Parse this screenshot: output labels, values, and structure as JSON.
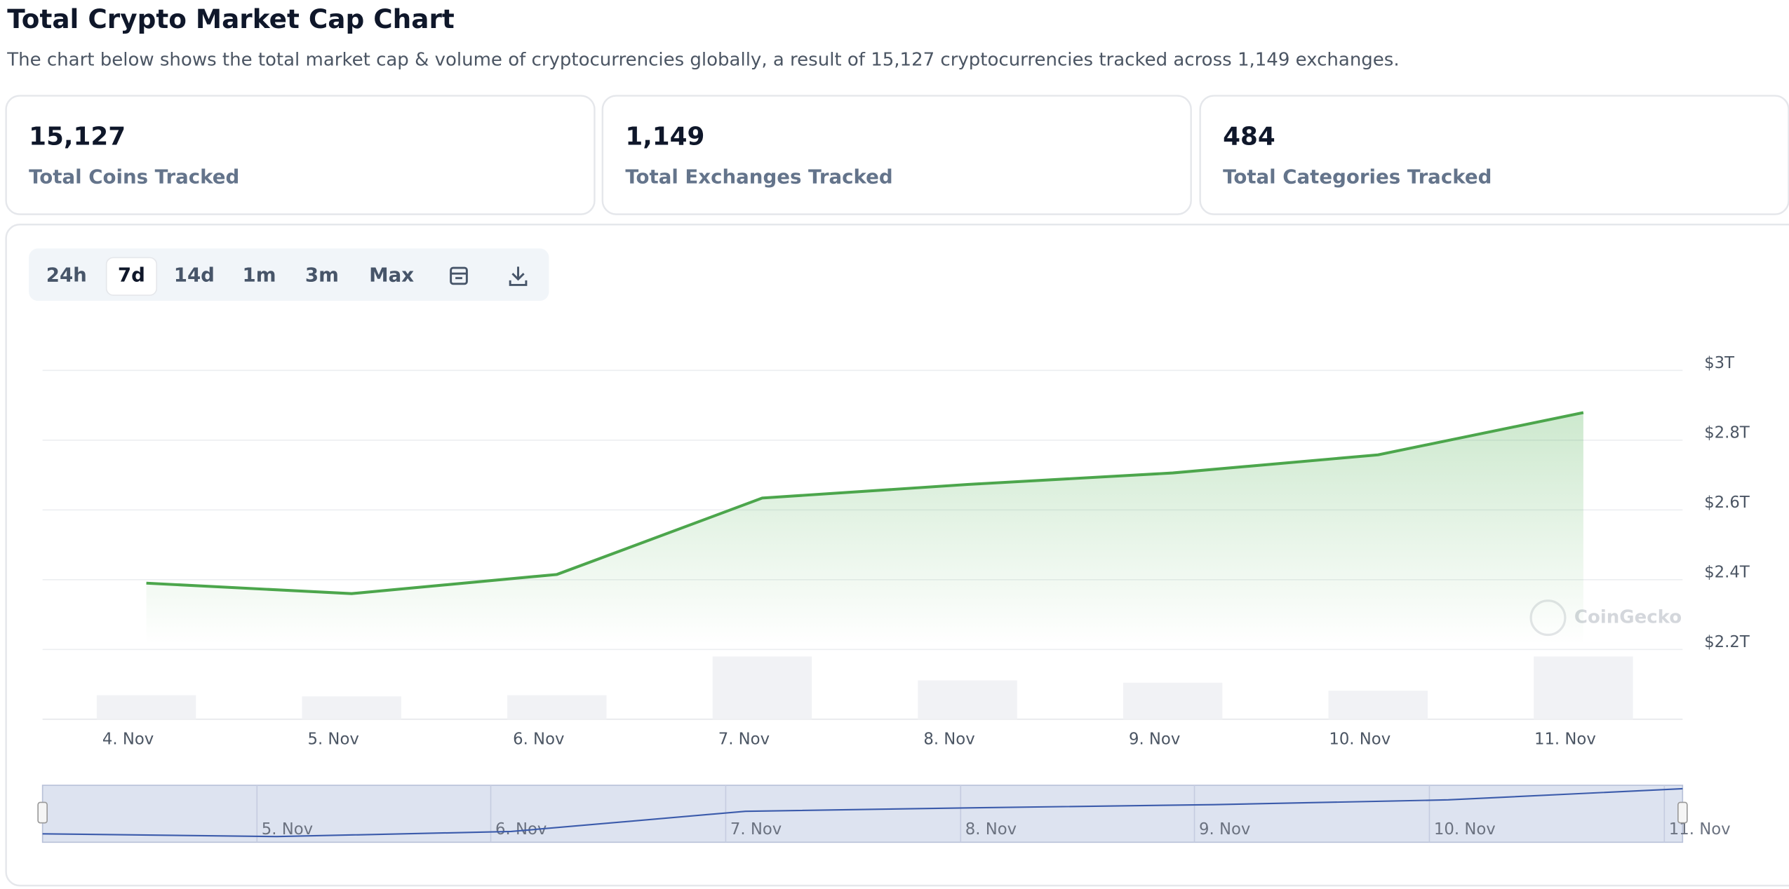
{
  "header": {
    "title": "Total Crypto Market Cap Chart",
    "subtitle": "The chart below shows the total market cap & volume of cryptocurrencies globally, a result of 15,127 cryptocurrencies tracked across 1,149 exchanges."
  },
  "stats": [
    {
      "value": "15,127",
      "label": "Total Coins Tracked"
    },
    {
      "value": "1,149",
      "label": "Total Exchanges Tracked"
    },
    {
      "value": "484",
      "label": "Total Categories Tracked"
    }
  ],
  "range_buttons": [
    "24h",
    "7d",
    "14d",
    "1m",
    "3m",
    "Max"
  ],
  "chart_data": {
    "type": "line",
    "categories": [
      "4. Nov",
      "5. Nov",
      "6. Nov",
      "7. Nov",
      "8. Nov",
      "9. Nov",
      "10. Nov",
      "11. Nov"
    ],
    "series": [
      {
        "name": "Market Cap",
        "color": "#4ca64c",
        "values": [
          2.39,
          2.36,
          2.415,
          2.634,
          2.673,
          2.706,
          2.758,
          2.879
        ]
      },
      {
        "name": "Volume",
        "color": "#f1f2f5",
        "values": [
          21,
          20,
          21,
          55,
          34,
          32,
          25,
          55
        ]
      }
    ],
    "ylim": [
      2.0,
      3.0
    ],
    "yticks": [
      {
        "value": 2.2,
        "label": "$2.2T"
      },
      {
        "value": 2.4,
        "label": "$2.4T"
      },
      {
        "value": 2.6,
        "label": "$2.6T"
      },
      {
        "value": 2.8,
        "label": "$2.8T"
      },
      {
        "value": 3.0,
        "label": "$3T"
      }
    ],
    "grid": true,
    "watermark": "CoinGecko"
  }
}
